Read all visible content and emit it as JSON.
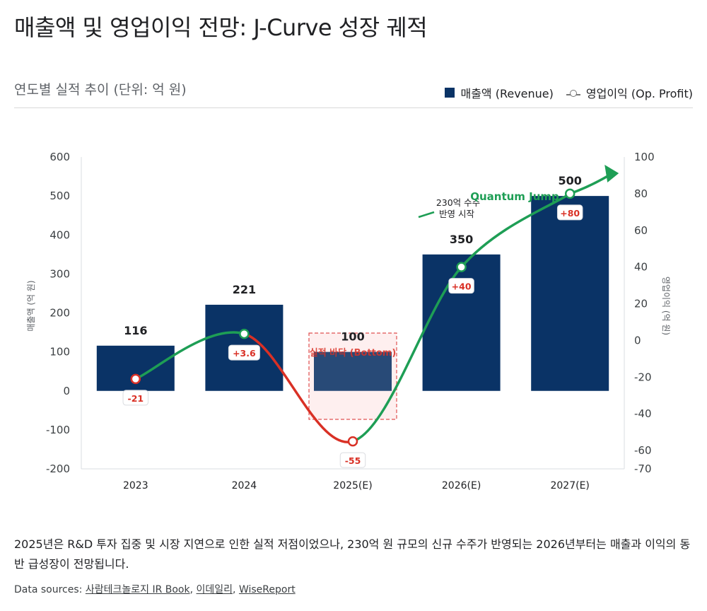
{
  "header": {
    "title": "매출액 및 영업이익 전망: J-Curve 성장 궤적",
    "subtitle": "연도별 실적 추이 (단위: 억 원)"
  },
  "legend": {
    "revenue": "매출액 (Revenue)",
    "profit": "영업이익 (Op. Profit)"
  },
  "colors": {
    "bar": "#0a3366",
    "loss": "#d93025",
    "growth": "#1e9e55",
    "bottom_box": "#e05252"
  },
  "chart_data": {
    "type": "bar",
    "categories": [
      "2023",
      "2024",
      "2025(E)",
      "2026(E)",
      "2027(E)"
    ],
    "series": [
      {
        "name": "매출액 (Revenue)",
        "type": "bar",
        "axis": "left",
        "values": [
          116,
          221,
          100,
          350,
          500
        ],
        "labels": [
          "116",
          "221",
          "100",
          "350",
          "500"
        ]
      },
      {
        "name": "영업이익 (Op. Profit)",
        "type": "line",
        "axis": "right",
        "values": [
          -21,
          3.6,
          -55,
          40,
          80
        ],
        "labels": [
          "-21",
          "+3.6",
          "-55",
          "+40",
          "+80"
        ]
      }
    ],
    "ylabel": "매출액 (억 원)",
    "y2label": "영업이익 (억 원)",
    "ylim": [
      -200,
      600
    ],
    "yticks": [
      "600",
      "500",
      "400",
      "300",
      "200",
      "100",
      "0",
      "-100",
      "-200"
    ],
    "ytick_values": [
      600,
      500,
      400,
      300,
      200,
      100,
      0,
      -100,
      -200
    ],
    "y2lim": [
      -70,
      100
    ],
    "y2ticks": [
      "100",
      "80",
      "60",
      "40",
      "20",
      "0",
      "-20",
      "-40",
      "-60",
      "-70"
    ],
    "y2tick_values": [
      100,
      80,
      60,
      40,
      20,
      0,
      -20,
      -40,
      -60,
      -70
    ],
    "grid": false,
    "legend_position": "top-right",
    "annotations": {
      "bottom": "실적 바닥 (Bottom)",
      "orders": [
        "230억 수주",
        "반영 시작"
      ],
      "jump": "Quantum Jump"
    }
  },
  "caption": "2025년은 R&D 투자 집중 및 시장 지연으로 인한 실적 저점이었으나, 230억 원 규모의 신규 수주가 반영되는 2026년부터는 매출과 이익의 동반 급성장이 전망됩니다.",
  "sources": {
    "label": "Data sources:",
    "items": [
      "사람테크놀로지 IR Book",
      "이데일리",
      "WiseReport"
    ]
  }
}
